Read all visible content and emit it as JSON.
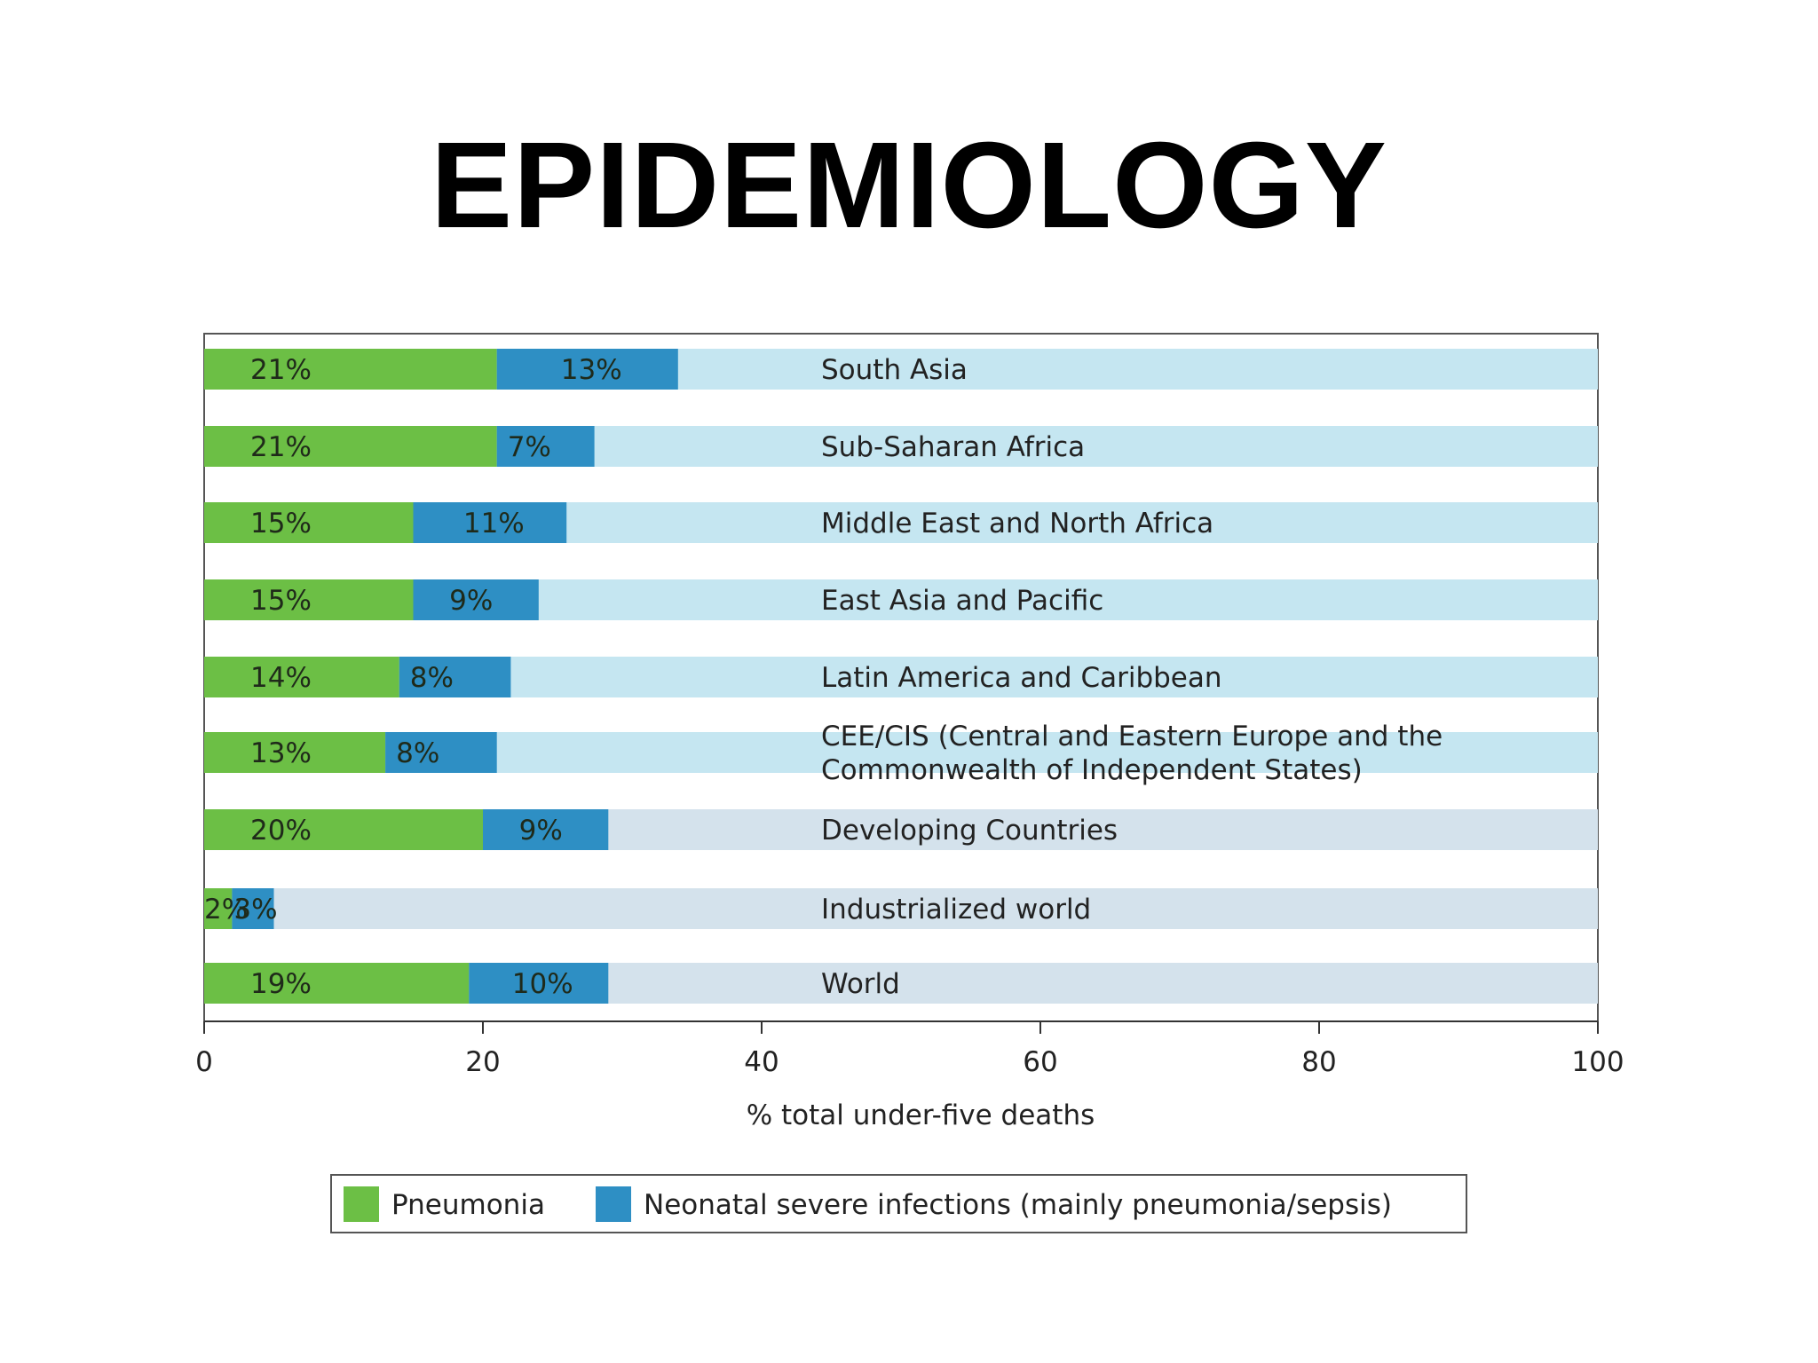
{
  "title": "EPIDEMIOLOGY",
  "chart_data": {
    "type": "bar",
    "orientation": "horizontal",
    "stacked": true,
    "categories": [
      "South Asia",
      "Sub-Saharan Africa",
      "Middle East and North Africa",
      "East Asia and Pacific",
      "Latin America and Caribbean",
      "CEE/CIS (Central and Eastern Europe and the Commonwealth of Independent States)",
      "Developing Countries",
      "Industrialized world",
      "World"
    ],
    "category_lines": [
      [
        "South Asia"
      ],
      [
        "Sub-Saharan Africa"
      ],
      [
        "Middle East and North Africa"
      ],
      [
        "East Asia and Pacific"
      ],
      [
        "Latin America and Caribbean"
      ],
      [
        "CEE/CIS (Central and Eastern Europe and the",
        "Commonwealth of Independent States)"
      ],
      [
        "Developing Countries"
      ],
      [
        "Industrialized world"
      ],
      [
        "World"
      ]
    ],
    "series": [
      {
        "name": "Pneumonia",
        "color": "#6cbf45",
        "values": [
          21,
          21,
          15,
          15,
          14,
          13,
          20,
          2,
          19
        ],
        "labels": [
          "21%",
          "21%",
          "15%",
          "15%",
          "14%",
          "13%",
          "20%",
          "2%",
          "19%"
        ]
      },
      {
        "name": "Neonatal severe infections (mainly pneumonia/sepsis)",
        "color": "#2e8fc4",
        "values": [
          13,
          7,
          11,
          9,
          8,
          8,
          9,
          3,
          10
        ],
        "labels": [
          "13%",
          "7%",
          "11%",
          "9%",
          "8%",
          "8%",
          "9%",
          "3%",
          "10%"
        ]
      }
    ],
    "background_colors": [
      "#c5e6f1",
      "#c5e6f1",
      "#c5e6f1",
      "#c5e6f1",
      "#c5e6f1",
      "#c5e6f1",
      "#d4e2ec",
      "#d4e2ec",
      "#d4e2ec"
    ],
    "xlabel": "% total under-five deaths",
    "xlim": [
      0,
      100
    ],
    "xticks": [
      0,
      20,
      40,
      60,
      80,
      100
    ],
    "xtick_labels": [
      "0",
      "20",
      "40",
      "60",
      "80",
      "100"
    ],
    "legend_position": "bottom",
    "grid": false
  }
}
